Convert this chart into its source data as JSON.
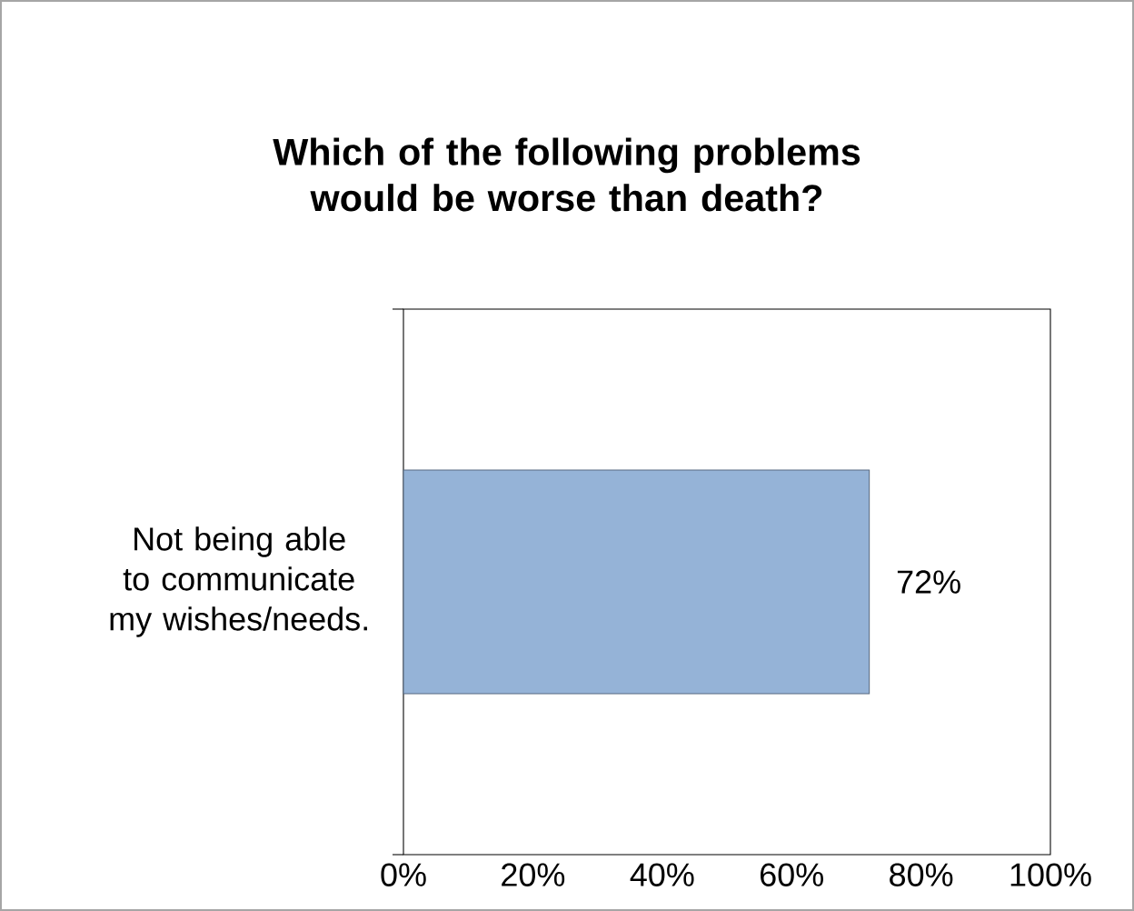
{
  "chart_data": {
    "type": "bar",
    "orientation": "horizontal",
    "title": "Which of the following problems\nwould be worse than death?",
    "categories": [
      "Not being able to communicate my wishes/needs."
    ],
    "values": [
      72
    ],
    "value_labels": [
      "72%"
    ],
    "color": "#95b3d7",
    "xlim": [
      0,
      100
    ],
    "xticks": [
      {
        "value": 0,
        "label": "0%"
      },
      {
        "value": 20,
        "label": "20%"
      },
      {
        "value": 40,
        "label": "40%"
      },
      {
        "value": 60,
        "label": "60%"
      },
      {
        "value": 80,
        "label": "80%"
      },
      {
        "value": 100,
        "label": "100%"
      }
    ],
    "grid": false
  }
}
